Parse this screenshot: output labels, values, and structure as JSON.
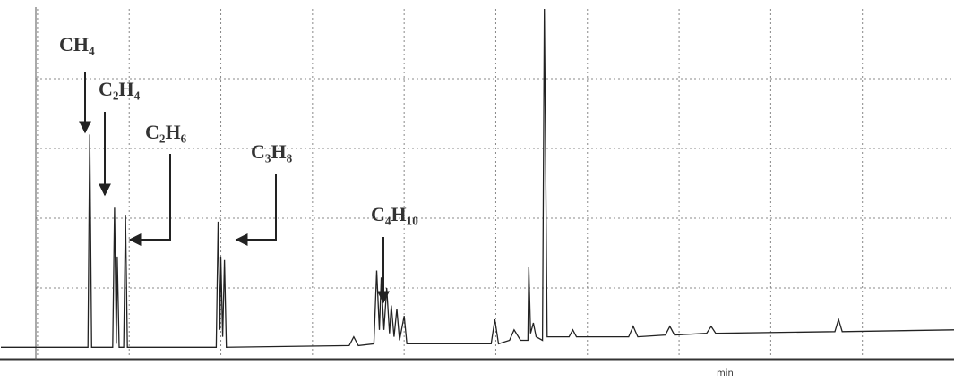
{
  "chart_data": {
    "type": "line",
    "color": "#222",
    "x_label": "min",
    "xlim": [
      -0.4,
      10
    ],
    "ylim": [
      0,
      100
    ],
    "xticks": [
      0,
      1,
      2,
      3,
      4,
      5,
      6,
      7,
      8,
      9
    ],
    "yticks": [
      20,
      40,
      60,
      80
    ],
    "grid": true,
    "x": [
      -0.4,
      0.55,
      0.57,
      0.59,
      0.82,
      0.84,
      0.86,
      0.87,
      0.89,
      0.94,
      0.96,
      0.98,
      1.95,
      1.97,
      1.99,
      2.0,
      2.02,
      2.04,
      2.06,
      3.4,
      3.45,
      3.5,
      3.67,
      3.7,
      3.73,
      3.75,
      3.78,
      3.81,
      3.84,
      3.86,
      3.89,
      3.92,
      3.95,
      4.0,
      4.03,
      4.95,
      4.99,
      5.03,
      5.15,
      5.2,
      5.27,
      5.35,
      5.36,
      5.38,
      5.41,
      5.44,
      5.51,
      5.53,
      5.56,
      5.8,
      5.84,
      5.88,
      6.45,
      6.5,
      6.55,
      6.85,
      6.9,
      6.95,
      7.3,
      7.35,
      7.4,
      8.7,
      8.74,
      8.78,
      10
    ],
    "values": [
      3,
      3,
      64,
      3,
      3,
      43,
      4,
      29,
      3,
      3,
      41,
      3,
      3,
      39,
      8,
      29,
      6,
      28,
      3,
      3.5,
      6,
      3.5,
      4,
      25,
      8,
      23,
      8,
      20,
      7,
      15,
      6,
      14,
      5,
      12,
      4,
      4,
      11,
      4,
      5,
      8,
      5,
      5,
      26,
      7,
      10,
      6,
      5,
      100,
      6,
      6,
      8,
      6,
      6,
      9,
      6,
      6.5,
      9,
      6.5,
      7,
      9,
      7,
      7.5,
      11,
      7.5,
      8
    ],
    "annotations": [
      "CH₄",
      "C₂H₄",
      "C₂H₆",
      "C₃H₈",
      "C₄H₁₀"
    ]
  }
}
